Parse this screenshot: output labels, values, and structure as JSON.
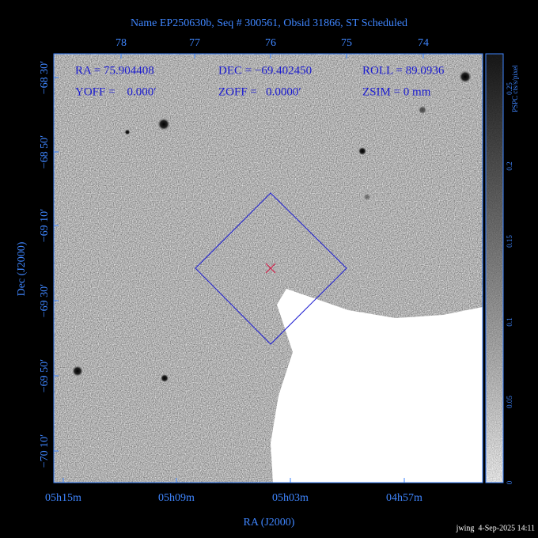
{
  "header": {
    "title": "Name EP250630b, Seq # 300561, Obsid 31866, ST Scheduled"
  },
  "info": [
    [
      "RA = 75.904408",
      "DEC = −69.402450",
      "ROLL = 89.0936"
    ],
    [
      "YOFF =    0.000′",
      "ZOFF =   0.0000′",
      "ZSIM = 0 mm"
    ]
  ],
  "axes": {
    "top_ticks": [
      "78",
      "77",
      "76",
      "75",
      "74"
    ],
    "bottom_ticks": [
      "05h15m",
      "05h09m",
      "05h03m",
      "04h57m"
    ],
    "left_ticks": [
      "−68 30′",
      "−68 50′",
      "−69 10′",
      "−69 30′",
      "−69 50′",
      "−70 10′"
    ],
    "xlabel": "RA (J2000)",
    "ylabel": "Dec (J2000)"
  },
  "colorbar": {
    "label": "PSPC cts/s/pixel",
    "ticks": [
      "0",
      "0.05",
      "0.1",
      "0.15",
      "0.2",
      "0.25"
    ]
  },
  "footer": "jwing  4-Sep-2025 14:11"
}
